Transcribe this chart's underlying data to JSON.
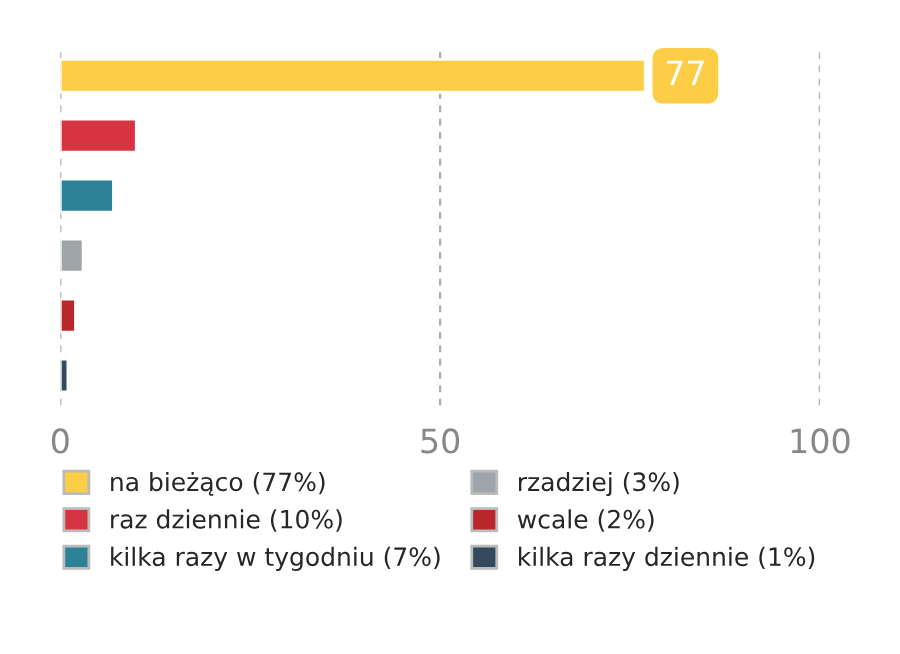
{
  "chart_data": {
    "type": "bar",
    "orientation": "horizontal",
    "categories": [
      null,
      null,
      null,
      null,
      null,
      null
    ],
    "series": [
      {
        "name": "na bieżąco (77%)",
        "color": "#fdcd45",
        "values": [
          77,
          null,
          null,
          null,
          null,
          null
        ],
        "value_labels": [
          "77",
          null,
          null,
          null,
          null,
          null
        ]
      },
      {
        "name": "raz dziennie (10%)",
        "color": "#d53440",
        "values": [
          null,
          10,
          null,
          null,
          null,
          null
        ]
      },
      {
        "name": "kilka razy w tygodniu (7%)",
        "color": "#2e8296",
        "values": [
          null,
          null,
          7,
          null,
          null,
          null
        ]
      },
      {
        "name": "rzadziej (3%)",
        "color": "#9da5a8",
        "values": [
          null,
          null,
          null,
          3,
          null,
          null
        ]
      },
      {
        "name": "wcale (2%)",
        "color": "#b9272d",
        "values": [
          null,
          null,
          null,
          null,
          2,
          null
        ]
      },
      {
        "name": "kilka razy dziennie (1%)",
        "color": "#34495e",
        "values": [
          null,
          null,
          null,
          null,
          null,
          1
        ]
      }
    ],
    "xlim": [
      0,
      100
    ],
    "xticks": [
      0,
      50,
      100
    ],
    "grid": "x",
    "legend": "bottom"
  }
}
